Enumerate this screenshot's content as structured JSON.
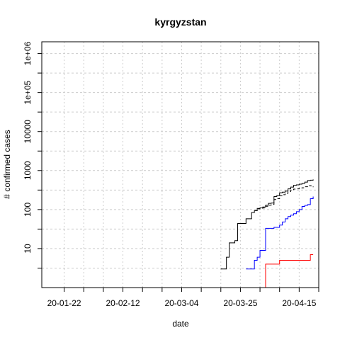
{
  "chart_data": {
    "type": "line",
    "title": "kyrgyzstan",
    "xlabel": "date",
    "ylabel": "# confirmed cases",
    "y_scale": "log",
    "x_range": [
      "2020-01-14",
      "2020-04-22"
    ],
    "y_range": [
      1,
      2000000
    ],
    "x_tick_labels": [
      "20-01-22",
      "20-02-12",
      "20-03-04",
      "20-03-25",
      "20-04-15"
    ],
    "x_tick_dates": [
      "2020-01-22",
      "2020-02-12",
      "2020-03-04",
      "2020-03-25",
      "2020-04-15"
    ],
    "y_tick_labels": [
      "10",
      "100",
      "1000",
      "10000",
      "1e+05",
      "1e+06"
    ],
    "y_tick_values": [
      10,
      100,
      1000,
      10000,
      100000,
      1000000
    ],
    "grid": true,
    "legend": "none",
    "series": [
      {
        "color": "#000000",
        "dash": "solid",
        "points": [
          [
            "2020-03-18",
            3
          ],
          [
            "2020-03-19",
            3
          ],
          [
            "2020-03-20",
            6
          ],
          [
            "2020-03-21",
            14
          ],
          [
            "2020-03-22",
            14
          ],
          [
            "2020-03-23",
            16
          ],
          [
            "2020-03-24",
            44
          ],
          [
            "2020-03-25",
            44
          ],
          [
            "2020-03-26",
            44
          ],
          [
            "2020-03-27",
            58
          ],
          [
            "2020-03-28",
            58
          ],
          [
            "2020-03-29",
            84
          ],
          [
            "2020-03-30",
            94
          ],
          [
            "2020-03-31",
            107
          ],
          [
            "2020-04-01",
            111
          ],
          [
            "2020-04-02",
            116
          ],
          [
            "2020-04-03",
            130
          ],
          [
            "2020-04-04",
            144
          ],
          [
            "2020-04-05",
            147
          ],
          [
            "2020-04-06",
            216
          ],
          [
            "2020-04-07",
            228
          ],
          [
            "2020-04-08",
            270
          ],
          [
            "2020-04-09",
            280
          ],
          [
            "2020-04-10",
            298
          ],
          [
            "2020-04-11",
            339
          ],
          [
            "2020-04-12",
            377
          ],
          [
            "2020-04-13",
            419
          ],
          [
            "2020-04-14",
            430
          ],
          [
            "2020-04-15",
            449
          ],
          [
            "2020-04-16",
            466
          ],
          [
            "2020-04-17",
            506
          ],
          [
            "2020-04-18",
            554
          ],
          [
            "2020-04-19",
            568
          ],
          [
            "2020-04-20",
            590
          ]
        ]
      },
      {
        "color": "#000000",
        "dash": "dashed",
        "points": [
          [
            "2020-03-29",
            84
          ],
          [
            "2020-03-30",
            94
          ],
          [
            "2020-03-31",
            104
          ],
          [
            "2020-04-01",
            108
          ],
          [
            "2020-04-02",
            110
          ],
          [
            "2020-04-03",
            121
          ],
          [
            "2020-04-04",
            130
          ],
          [
            "2020-04-05",
            135
          ],
          [
            "2020-04-06",
            180
          ],
          [
            "2020-04-07",
            190
          ],
          [
            "2020-04-08",
            225
          ],
          [
            "2020-04-09",
            240
          ],
          [
            "2020-04-10",
            260
          ],
          [
            "2020-04-11",
            290
          ],
          [
            "2020-04-12",
            315
          ],
          [
            "2020-04-13",
            335
          ],
          [
            "2020-04-14",
            340
          ],
          [
            "2020-04-15",
            355
          ],
          [
            "2020-04-16",
            362
          ],
          [
            "2020-04-17",
            385
          ],
          [
            "2020-04-18",
            410
          ],
          [
            "2020-04-19",
            405
          ],
          [
            "2020-04-20",
            375
          ]
        ]
      },
      {
        "color": "#0000ff",
        "dash": "solid",
        "points": [
          [
            "2020-03-27",
            3
          ],
          [
            "2020-03-28",
            3
          ],
          [
            "2020-03-29",
            3
          ],
          [
            "2020-03-30",
            5
          ],
          [
            "2020-03-31",
            6
          ],
          [
            "2020-04-01",
            9
          ],
          [
            "2020-04-02",
            9
          ],
          [
            "2020-04-03",
            33
          ],
          [
            "2020-04-04",
            33
          ],
          [
            "2020-04-05",
            33
          ],
          [
            "2020-04-06",
            35
          ],
          [
            "2020-04-07",
            35
          ],
          [
            "2020-04-08",
            40
          ],
          [
            "2020-04-09",
            48
          ],
          [
            "2020-04-10",
            58
          ],
          [
            "2020-04-11",
            66
          ],
          [
            "2020-04-12",
            72
          ],
          [
            "2020-04-13",
            78
          ],
          [
            "2020-04-14",
            88
          ],
          [
            "2020-04-15",
            100
          ],
          [
            "2020-04-16",
            120
          ],
          [
            "2020-04-17",
            128
          ],
          [
            "2020-04-18",
            134
          ],
          [
            "2020-04-19",
            190
          ],
          [
            "2020-04-20",
            215
          ]
        ]
      },
      {
        "color": "#ff0000",
        "dash": "solid",
        "points": [
          [
            "2020-03-31",
            1
          ],
          [
            "2020-04-01",
            1
          ],
          [
            "2020-04-02",
            1
          ],
          [
            "2020-04-03",
            4
          ],
          [
            "2020-04-04",
            4
          ],
          [
            "2020-04-05",
            4
          ],
          [
            "2020-04-06",
            4
          ],
          [
            "2020-04-07",
            4
          ],
          [
            "2020-04-08",
            5
          ],
          [
            "2020-04-09",
            5
          ],
          [
            "2020-04-10",
            5
          ],
          [
            "2020-04-11",
            5
          ],
          [
            "2020-04-12",
            5
          ],
          [
            "2020-04-13",
            5
          ],
          [
            "2020-04-14",
            5
          ],
          [
            "2020-04-15",
            5
          ],
          [
            "2020-04-16",
            5
          ],
          [
            "2020-04-17",
            5
          ],
          [
            "2020-04-18",
            5
          ],
          [
            "2020-04-19",
            7
          ],
          [
            "2020-04-20",
            7
          ]
        ]
      }
    ]
  }
}
